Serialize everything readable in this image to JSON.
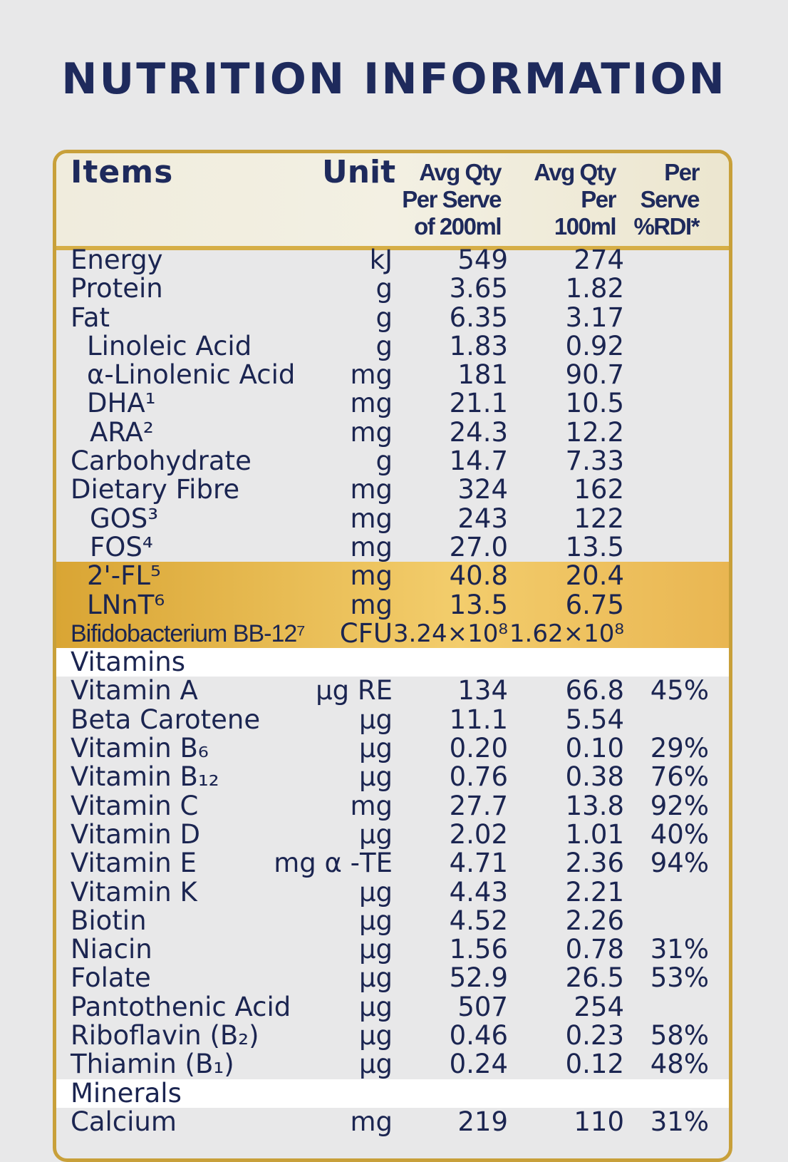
{
  "title": "NUTRITION INFORMATION",
  "header": {
    "items": "Items",
    "unit": "Unit",
    "per_serve": "Avg Qty\nPer Serve\nof 200ml",
    "per_100": "Avg Qty\nPer\n100ml",
    "rdi": "Per\nServe\n%RDI*"
  },
  "rows": [
    {
      "name": "Energy",
      "unit": "kJ",
      "serve": "549",
      "per100": "274",
      "rdi": "",
      "indent": 0
    },
    {
      "name": "Protein",
      "unit": "g",
      "serve": "3.65",
      "per100": "1.82",
      "rdi": "",
      "indent": 0
    },
    {
      "name": "Fat",
      "unit": "g",
      "serve": "6.35",
      "per100": "3.17",
      "rdi": "",
      "indent": 0
    },
    {
      "name": "Linoleic Acid",
      "unit": "g",
      "serve": "1.83",
      "per100": "0.92",
      "rdi": "",
      "indent": 1
    },
    {
      "name": "α-Linolenic Acid",
      "unit": "mg",
      "serve": "181",
      "per100": "90.7",
      "rdi": "",
      "indent": 1
    },
    {
      "name": "DHA¹",
      "unit": "mg",
      "serve": "21.1",
      "per100": "10.5",
      "rdi": "",
      "indent": 1
    },
    {
      "name": "ARA²",
      "unit": "mg",
      "serve": "24.3",
      "per100": "12.2",
      "rdi": "",
      "indent": 2
    },
    {
      "name": "Carbohydrate",
      "unit": "g",
      "serve": "14.7",
      "per100": "7.33",
      "rdi": "",
      "indent": 0
    },
    {
      "name": "Dietary Fibre",
      "unit": "mg",
      "serve": "324",
      "per100": "162",
      "rdi": "",
      "indent": 0
    },
    {
      "name": "GOS³",
      "unit": "mg",
      "serve": "243",
      "per100": "122",
      "rdi": "",
      "indent": 2
    },
    {
      "name": "FOS⁴",
      "unit": "mg",
      "serve": "27.0",
      "per100": "13.5",
      "rdi": "",
      "indent": 2
    },
    {
      "name": "2'-FL⁵",
      "unit": "mg",
      "serve": "40.8",
      "per100": "20.4",
      "rdi": "",
      "indent": 1,
      "highlight": true
    },
    {
      "name": "LNnT⁶",
      "unit": "mg",
      "serve": "13.5",
      "per100": "6.75",
      "rdi": "",
      "indent": 1,
      "highlight": true
    },
    {
      "name": "Bifidobacterium BB-12⁷",
      "unit": "CFU",
      "serve": "3.24×10⁸",
      "per100": "1.62×10⁸",
      "rdi": "",
      "indent": 0,
      "highlight": true,
      "narrow": true
    },
    {
      "name": "Vitamins",
      "unit": "",
      "serve": "",
      "per100": "",
      "rdi": "",
      "indent": 0,
      "section": true
    },
    {
      "name": "Vitamin A",
      "unit": "μg RE",
      "serve": "134",
      "per100": "66.8",
      "rdi": "45%",
      "indent": 0
    },
    {
      "name": "Beta Carotene",
      "unit": "μg",
      "serve": "11.1",
      "per100": "5.54",
      "rdi": "",
      "indent": 0
    },
    {
      "name": "Vitamin B₆",
      "unit": "μg",
      "serve": "0.20",
      "per100": "0.10",
      "rdi": "29%",
      "indent": 0
    },
    {
      "name": "Vitamin B₁₂",
      "unit": "μg",
      "serve": "0.76",
      "per100": "0.38",
      "rdi": "76%",
      "indent": 0
    },
    {
      "name": "Vitamin C",
      "unit": "mg",
      "serve": "27.7",
      "per100": "13.8",
      "rdi": "92%",
      "indent": 0
    },
    {
      "name": "Vitamin D",
      "unit": "μg",
      "serve": "2.02",
      "per100": "1.01",
      "rdi": "40%",
      "indent": 0
    },
    {
      "name": "Vitamin E",
      "unit": "mg α -TE",
      "serve": "4.71",
      "per100": "2.36",
      "rdi": "94%",
      "indent": 0
    },
    {
      "name": "Vitamin K",
      "unit": "μg",
      "serve": "4.43",
      "per100": "2.21",
      "rdi": "",
      "indent": 0
    },
    {
      "name": "Biotin",
      "unit": "μg",
      "serve": "4.52",
      "per100": "2.26",
      "rdi": "",
      "indent": 0
    },
    {
      "name": "Niacin",
      "unit": "μg",
      "serve": "1.56",
      "per100": "0.78",
      "rdi": "31%",
      "indent": 0
    },
    {
      "name": "Folate",
      "unit": "μg",
      "serve": "52.9",
      "per100": "26.5",
      "rdi": "53%",
      "indent": 0
    },
    {
      "name": "Pantothenic Acid",
      "unit": "μg",
      "serve": "507",
      "per100": "254",
      "rdi": "",
      "indent": 0
    },
    {
      "name": "Riboflavin (B₂)",
      "unit": "μg",
      "serve": "0.46",
      "per100": "0.23",
      "rdi": "58%",
      "indent": 0
    },
    {
      "name": "Thiamin (B₁)",
      "unit": "μg",
      "serve": "0.24",
      "per100": "0.12",
      "rdi": "48%",
      "indent": 0
    },
    {
      "name": "Minerals",
      "unit": "",
      "serve": "",
      "per100": "",
      "rdi": "",
      "indent": 0,
      "section": true
    },
    {
      "name": "Calcium",
      "unit": "mg",
      "serve": "219",
      "per100": "110",
      "rdi": "31%",
      "indent": 0
    }
  ],
  "colors": {
    "navy": "#1e2a5c",
    "gold": "#d6ae46",
    "highlight": "#f3cd6c",
    "background": "#e8e8e9"
  }
}
